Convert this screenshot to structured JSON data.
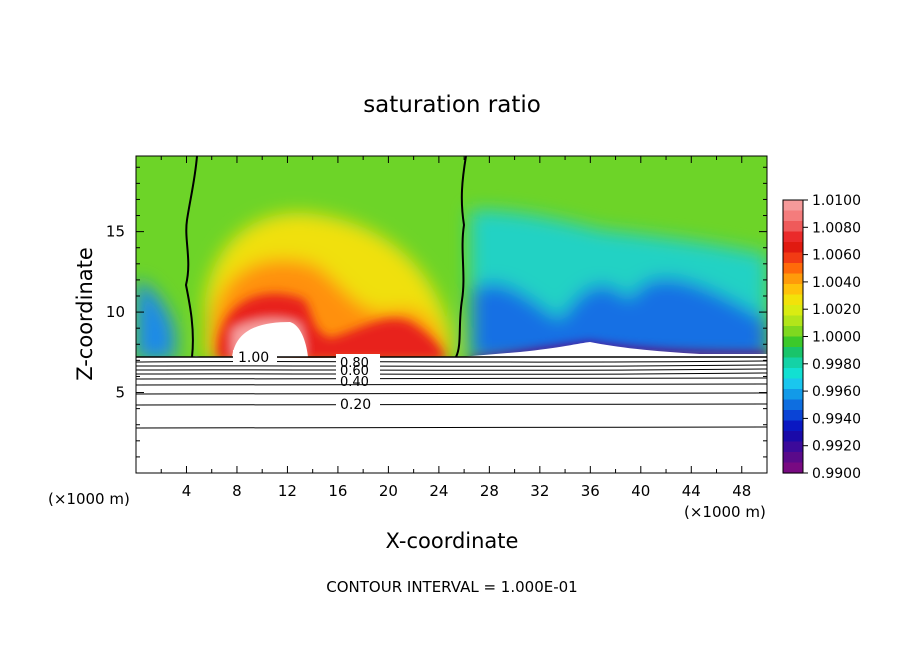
{
  "chart_data": {
    "type": "heatmap",
    "title": "saturation ratio",
    "xlabel": "X-coordinate",
    "ylabel": "Z-coordinate",
    "x_unit": "(×1000 m)",
    "x_ticks": [
      4,
      8,
      12,
      16,
      20,
      24,
      28,
      32,
      36,
      40,
      44,
      48
    ],
    "y_ticks": [
      5,
      10,
      15
    ],
    "xlim": [
      0,
      50
    ],
    "ylim": [
      0,
      19.7
    ],
    "footer": "CONTOUR INTERVAL = 1.000E-01",
    "colorbar": {
      "labels": [
        "1.0100",
        "1.0080",
        "1.0060",
        "1.0040",
        "1.0020",
        "1.0000",
        "0.9980",
        "0.9960",
        "0.9940",
        "0.9920",
        "0.9900"
      ],
      "colors": [
        "#f59a9a",
        "#f47c7c",
        "#ef5a5a",
        "#ea2a2a",
        "#e01a10",
        "#f23b14",
        "#ff6a0a",
        "#ff9b0a",
        "#ffc20a",
        "#f2e20a",
        "#d9ec12",
        "#b2e51a",
        "#7fd81f",
        "#3cc92a",
        "#19c46a",
        "#14d2a6",
        "#12e0d2",
        "#1ac6ee",
        "#129ae8",
        "#0e6ee0",
        "#0a44d6",
        "#0a18c2",
        "#1a0aa8",
        "#3c0a9a",
        "#5a0a8a",
        "#780a82"
      ]
    },
    "contour_labels": [
      "1.00",
      "0.80",
      "0.60",
      "0.40",
      "0.20"
    ]
  }
}
